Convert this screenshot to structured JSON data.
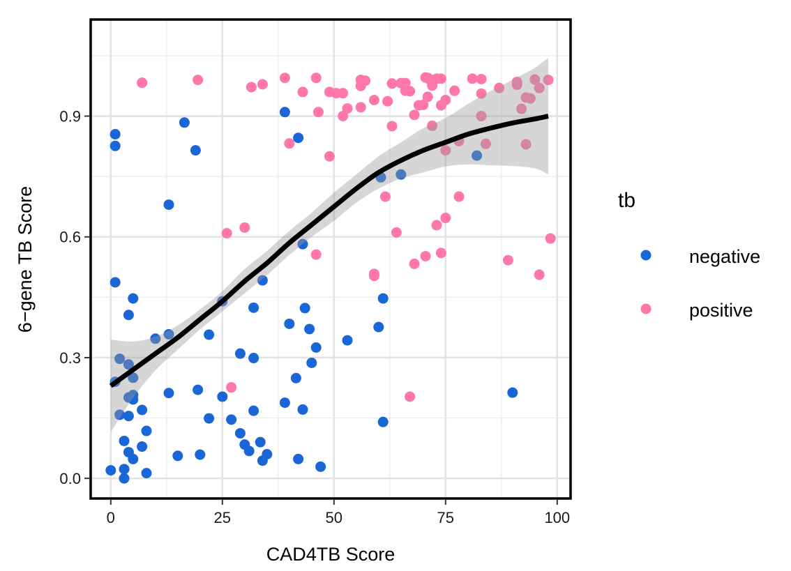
{
  "chart_data": {
    "type": "scatter",
    "xlabel": "CAD4TB Score",
    "ylabel": "6−gene TB Score",
    "xlim": [
      -4.5,
      103
    ],
    "ylim": [
      -0.05,
      1.14
    ],
    "x_ticks": [
      0,
      25,
      50,
      75,
      100
    ],
    "x_tick_labels": [
      "0",
      "25",
      "50",
      "75",
      "100"
    ],
    "y_ticks": [
      0.0,
      0.3,
      0.6,
      0.9
    ],
    "y_tick_labels": [
      "0.0",
      "0.3",
      "0.6",
      "0.9"
    ],
    "grid": true,
    "legend": {
      "title": "tb",
      "position": "right",
      "entries": [
        {
          "label": "negative",
          "color": "#1a66d6"
        },
        {
          "label": "positive",
          "color": "#ff77aa"
        }
      ]
    },
    "series": [
      {
        "name": "negative",
        "color": "#1a66d6",
        "points": [
          [
            0,
            0.02
          ],
          [
            1,
            0.855
          ],
          [
            1,
            0.826
          ],
          [
            1,
            0.487
          ],
          [
            1,
            0.24
          ],
          [
            2,
            0.297
          ],
          [
            2,
            0.158
          ],
          [
            3,
            0.093
          ],
          [
            3,
            0.023
          ],
          [
            3,
            0.0
          ],
          [
            4,
            0.406
          ],
          [
            4,
            0.283
          ],
          [
            4,
            0.201
          ],
          [
            4,
            0.155
          ],
          [
            4,
            0.065
          ],
          [
            5,
            0.447
          ],
          [
            5,
            0.25
          ],
          [
            5,
            0.207
          ],
          [
            5,
            0.196
          ],
          [
            5,
            0.048
          ],
          [
            7,
            0.17
          ],
          [
            7,
            0.079
          ],
          [
            8,
            0.118
          ],
          [
            8,
            0.013
          ],
          [
            10,
            0.347
          ],
          [
            13,
            0.68
          ],
          [
            13,
            0.358
          ],
          [
            13,
            0.212
          ],
          [
            15,
            0.056
          ],
          [
            16.5,
            0.884
          ],
          [
            19,
            0.815
          ],
          [
            19.5,
            0.22
          ],
          [
            20,
            0.059
          ],
          [
            22,
            0.357
          ],
          [
            22,
            0.149
          ],
          [
            25,
            0.44
          ],
          [
            25,
            0.203
          ],
          [
            27,
            0.146
          ],
          [
            29,
            0.31
          ],
          [
            29,
            0.112
          ],
          [
            30,
            0.084
          ],
          [
            31,
            0.068
          ],
          [
            32,
            0.424
          ],
          [
            32,
            0.299
          ],
          [
            32,
            0.168
          ],
          [
            33.5,
            0.09
          ],
          [
            34,
            0.492
          ],
          [
            34,
            0.044
          ],
          [
            35,
            0.06
          ],
          [
            39,
            0.188
          ],
          [
            39,
            0.91
          ],
          [
            40,
            0.384
          ],
          [
            41.5,
            0.249
          ],
          [
            42,
            0.846
          ],
          [
            42,
            0.048
          ],
          [
            43,
            0.582
          ],
          [
            43,
            0.171
          ],
          [
            43.5,
            0.423
          ],
          [
            44.5,
            0.371
          ],
          [
            45,
            0.287
          ],
          [
            46,
            0.325
          ],
          [
            47,
            0.029
          ],
          [
            53,
            0.343
          ],
          [
            60,
            0.376
          ],
          [
            60.5,
            0.748
          ],
          [
            61,
            0.447
          ],
          [
            61,
            0.14
          ],
          [
            65,
            0.755
          ],
          [
            82,
            0.802
          ],
          [
            90,
            0.213
          ]
        ]
      },
      {
        "name": "positive",
        "color": "#ff77aa",
        "points": [
          [
            7,
            0.983
          ],
          [
            19.5,
            0.99
          ],
          [
            26,
            0.609
          ],
          [
            27,
            0.226
          ],
          [
            30,
            0.623
          ],
          [
            31.5,
            0.972
          ],
          [
            34,
            0.979
          ],
          [
            39,
            0.995
          ],
          [
            40,
            0.832
          ],
          [
            43,
            0.96
          ],
          [
            46,
            0.995
          ],
          [
            46,
            0.556
          ],
          [
            46.5,
            0.91
          ],
          [
            49,
            0.96
          ],
          [
            49,
            0.8
          ],
          [
            50.5,
            0.957
          ],
          [
            52,
            0.957
          ],
          [
            52,
            0.9
          ],
          [
            53,
            0.919
          ],
          [
            56,
            0.99
          ],
          [
            56,
            0.975
          ],
          [
            56,
            0.922
          ],
          [
            57,
            0.988
          ],
          [
            59,
            0.94
          ],
          [
            59,
            0.508
          ],
          [
            59,
            0.503
          ],
          [
            61.5,
            0.7
          ],
          [
            62,
            0.937
          ],
          [
            63,
            0.875
          ],
          [
            63,
            0.981
          ],
          [
            64,
            0.611
          ],
          [
            65,
            0.982
          ],
          [
            66,
            0.982
          ],
          [
            66,
            0.963
          ],
          [
            67,
            0.962
          ],
          [
            67,
            0.203
          ],
          [
            68,
            0.533
          ],
          [
            68,
            0.903
          ],
          [
            69,
            0.927
          ],
          [
            70,
            0.928
          ],
          [
            70.5,
            0.996
          ],
          [
            70.5,
            0.552
          ],
          [
            71,
            0.995
          ],
          [
            71,
            0.948
          ],
          [
            71.5,
            0.991
          ],
          [
            72,
            0.976
          ],
          [
            72,
            0.876
          ],
          [
            73,
            0.993
          ],
          [
            73,
            0.629
          ],
          [
            74,
            0.993
          ],
          [
            74,
            0.56
          ],
          [
            74,
            0.927
          ],
          [
            75,
            0.815
          ],
          [
            75,
            0.647
          ],
          [
            75,
            0.94
          ],
          [
            77,
            0.963
          ],
          [
            78,
            0.838
          ],
          [
            78,
            0.7
          ],
          [
            81,
            0.993
          ],
          [
            83,
            0.992
          ],
          [
            83,
            0.956
          ],
          [
            83,
            0.9
          ],
          [
            84,
            0.831
          ],
          [
            87,
            0.97
          ],
          [
            89,
            0.542
          ],
          [
            91,
            0.978
          ],
          [
            91,
            0.985
          ],
          [
            92,
            0.918
          ],
          [
            93,
            0.946
          ],
          [
            93,
            0.83
          ],
          [
            94,
            0.944
          ],
          [
            95,
            0.991
          ],
          [
            96,
            0.97
          ],
          [
            96,
            0.506
          ],
          [
            98,
            0.99
          ],
          [
            98.5,
            0.596
          ]
        ]
      }
    ],
    "smooth": {
      "color": "#000000",
      "band_color": "#999999",
      "x": [
        0,
        5,
        10,
        15,
        20,
        25,
        30,
        35,
        40,
        45,
        50,
        55,
        60,
        65,
        70,
        75,
        80,
        85,
        90,
        95,
        98
      ],
      "y": [
        0.23,
        0.27,
        0.31,
        0.35,
        0.395,
        0.44,
        0.49,
        0.535,
        0.585,
        0.63,
        0.675,
        0.72,
        0.76,
        0.79,
        0.815,
        0.835,
        0.855,
        0.87,
        0.883,
        0.893,
        0.9
      ],
      "lower": [
        0.115,
        0.2,
        0.268,
        0.32,
        0.37,
        0.415,
        0.46,
        0.505,
        0.555,
        0.6,
        0.64,
        0.685,
        0.72,
        0.745,
        0.76,
        0.775,
        0.78,
        0.778,
        0.776,
        0.77,
        0.755
      ],
      "upper": [
        0.345,
        0.34,
        0.352,
        0.38,
        0.42,
        0.465,
        0.52,
        0.565,
        0.615,
        0.66,
        0.71,
        0.755,
        0.8,
        0.835,
        0.87,
        0.895,
        0.93,
        0.962,
        0.99,
        1.02,
        1.045
      ]
    }
  }
}
